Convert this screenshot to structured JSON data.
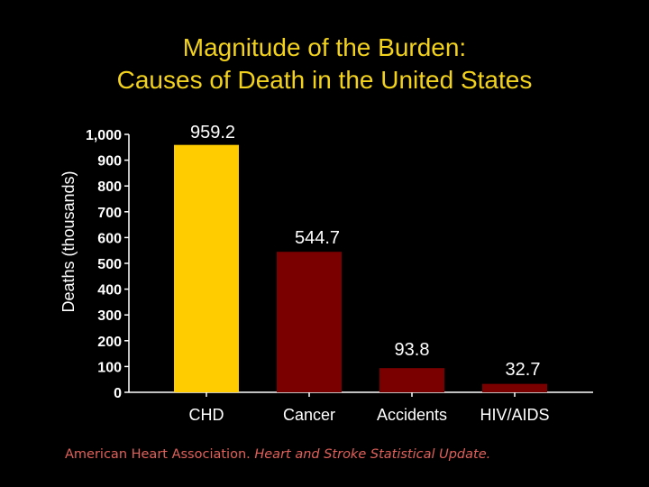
{
  "title_line1": "Magnitude of the Burden:",
  "title_line2": "Causes of Death in the United States",
  "source": {
    "org": "American Heart Association.",
    "publication": "Heart and Stroke Statistical Update."
  },
  "colors": {
    "background": "#000000",
    "title": "#F2D21C",
    "source": "#E0605A",
    "axis": "#ffffff"
  },
  "chart_data": {
    "type": "bar",
    "title": "",
    "xlabel": "",
    "ylabel": "Deaths (thousands)",
    "ylim": [
      0,
      1000
    ],
    "yticks": [
      0,
      100,
      200,
      300,
      400,
      500,
      600,
      700,
      800,
      900,
      1000
    ],
    "ytick_labels": [
      "0",
      "100",
      "200",
      "300",
      "400",
      "500",
      "600",
      "700",
      "800",
      "900",
      "1,000"
    ],
    "categories": [
      "CHD",
      "Cancer",
      "Accidents",
      "HIV/AIDS"
    ],
    "values": [
      959.2,
      544.7,
      93.8,
      32.7
    ],
    "value_labels": [
      "959.2",
      "544.7",
      "93.8",
      "32.7"
    ],
    "bar_colors": [
      "#FFCC00",
      "#7A0000",
      "#7A0000",
      "#7A0000"
    ],
    "grid": false,
    "legend": "none"
  }
}
